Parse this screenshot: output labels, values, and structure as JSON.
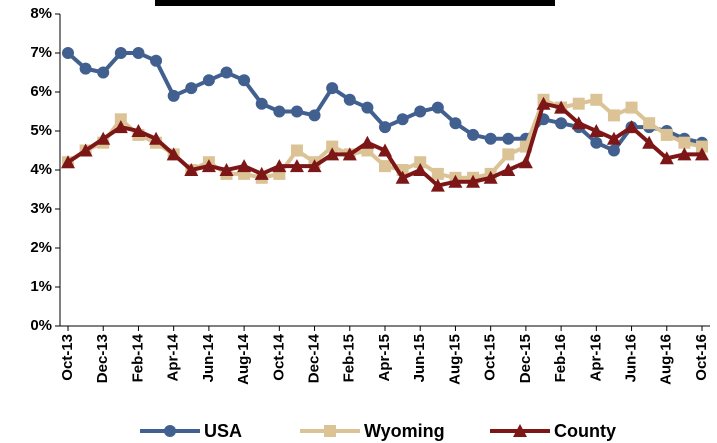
{
  "chart_data": {
    "type": "line",
    "categories": [
      "Oct-13",
      null,
      "Dec-13",
      null,
      "Feb-14",
      null,
      "Apr-14",
      null,
      "Jun-14",
      null,
      "Aug-14",
      null,
      "Oct-14",
      null,
      "Dec-14",
      null,
      "Feb-15",
      null,
      "Apr-15",
      null,
      "Jun-15",
      null,
      "Aug-15",
      null,
      "Oct-15",
      null,
      "Dec-15",
      null,
      "Feb-16",
      null,
      "Apr-16",
      null,
      "Jun-16",
      null,
      "Aug-16",
      null,
      "Oct-16"
    ],
    "series": [
      {
        "name": "USA",
        "color": "#41608f",
        "marker": "circle",
        "values": [
          7.0,
          6.6,
          6.5,
          7.0,
          7.0,
          6.8,
          5.9,
          6.1,
          6.3,
          6.5,
          6.3,
          5.7,
          5.5,
          5.5,
          5.4,
          6.1,
          5.8,
          5.6,
          5.1,
          5.3,
          5.5,
          5.6,
          5.2,
          4.9,
          4.8,
          4.8,
          4.8,
          5.3,
          5.2,
          5.1,
          4.7,
          4.5,
          5.1,
          5.1,
          5.0,
          4.8,
          4.7
        ]
      },
      {
        "name": "Wyoming",
        "color": "#dcc395",
        "marker": "square",
        "values": [
          4.2,
          4.5,
          4.7,
          5.3,
          4.9,
          4.7,
          4.4,
          4.0,
          4.2,
          3.9,
          3.9,
          3.8,
          3.9,
          4.5,
          4.2,
          4.6,
          4.4,
          4.5,
          4.1,
          4.0,
          4.2,
          3.9,
          3.8,
          3.8,
          3.9,
          4.4,
          4.6,
          5.8,
          5.6,
          5.7,
          5.8,
          5.4,
          5.6,
          5.2,
          4.9,
          4.7,
          4.6
        ]
      },
      {
        "name": "County",
        "color": "#7d1616",
        "marker": "triangle",
        "values": [
          4.2,
          4.5,
          4.8,
          5.1,
          5.0,
          4.8,
          4.4,
          4.0,
          4.1,
          4.0,
          4.1,
          3.9,
          4.1,
          4.1,
          4.1,
          4.4,
          4.4,
          4.7,
          4.5,
          3.8,
          4.0,
          3.6,
          3.7,
          3.7,
          3.8,
          4.0,
          4.2,
          5.7,
          5.6,
          5.2,
          5.0,
          4.8,
          5.1,
          4.7,
          4.3,
          4.4,
          4.4
        ]
      }
    ],
    "ylim": [
      0,
      8
    ],
    "yticks": [
      {
        "value": 0,
        "label": "0%"
      },
      {
        "value": 1,
        "label": "1%"
      },
      {
        "value": 2,
        "label": "2%"
      },
      {
        "value": 3,
        "label": "3%"
      },
      {
        "value": 4,
        "label": "4%"
      },
      {
        "value": 5,
        "label": "5%"
      },
      {
        "value": 6,
        "label": "6%"
      },
      {
        "value": 7,
        "label": "7%"
      },
      {
        "value": 8,
        "label": "8%"
      }
    ],
    "legend": "bottom"
  }
}
